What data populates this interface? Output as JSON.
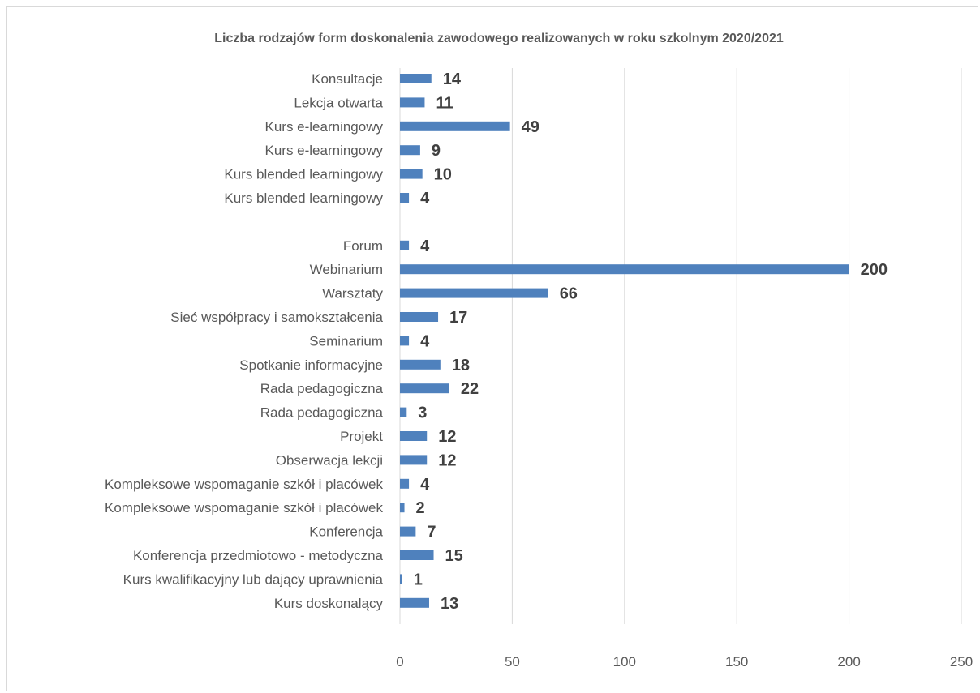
{
  "chart_data": {
    "type": "bar",
    "orientation": "horizontal",
    "title": "Liczba rodzajów form doskonalenia zawodowego realizowanych w roku szkolnym 2020/2021",
    "xlabel": "",
    "ylabel": "",
    "xlim": [
      0,
      250
    ],
    "xticks": [
      0,
      50,
      100,
      150,
      200,
      250
    ],
    "grid": "vertical",
    "bar_color": "#4f81bd",
    "categories": [
      "Konsultacje",
      "Lekcja otwarta",
      "Kurs e-learningowy",
      "Kurs e-learningowy",
      "Kurs blended learningowy",
      "Kurs blended learningowy",
      "",
      "Forum",
      "Webinarium",
      "Warsztaty",
      "Sieć współpracy i samokształcenia",
      "Seminarium",
      "Spotkanie informacyjne",
      "Rada pedagogiczna",
      "Rada pedagogiczna",
      "Projekt",
      "Obserwacja lekcji",
      "Kompleksowe wspomaganie szkół i placówek",
      "Kompleksowe wspomaganie szkół i placówek",
      "Konferencja",
      "Konferencja przedmiotowo - metodyczna",
      "Kurs kwalifikacyjny lub dający uprawnienia",
      "Kurs doskonalący"
    ],
    "values": [
      14,
      11,
      49,
      9,
      10,
      4,
      null,
      4,
      200,
      66,
      17,
      4,
      18,
      22,
      3,
      12,
      12,
      4,
      2,
      7,
      15,
      1,
      13
    ]
  }
}
